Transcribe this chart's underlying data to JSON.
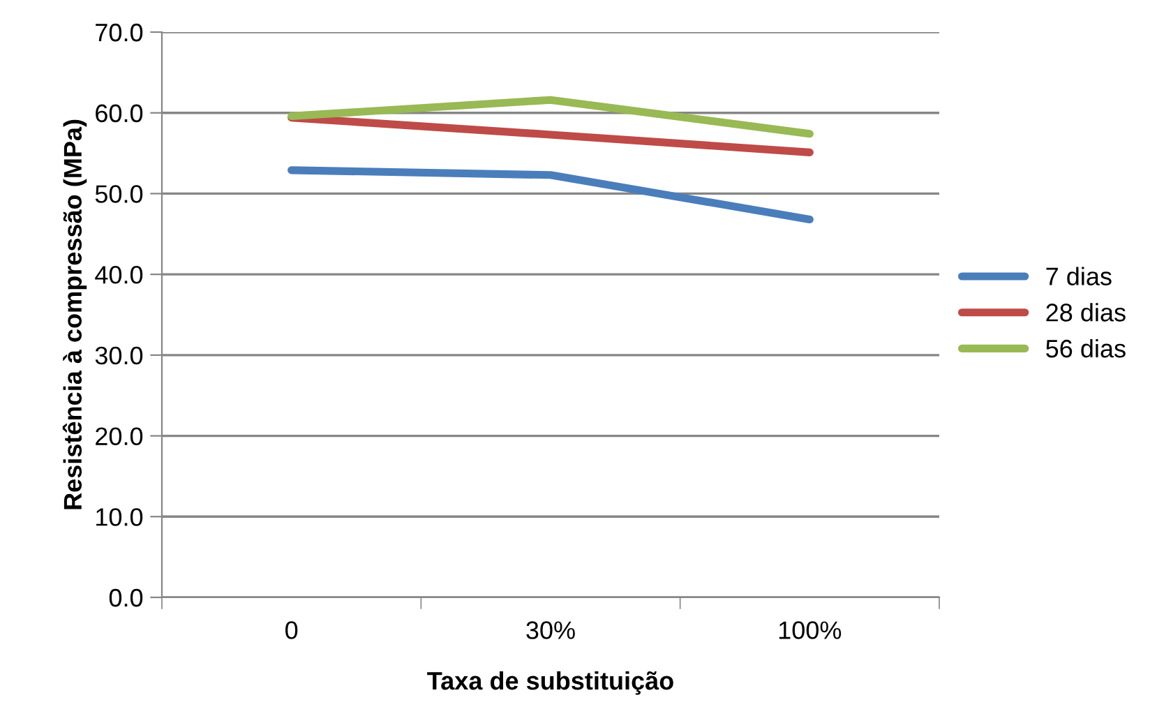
{
  "chart_data": {
    "type": "line",
    "xlabel": "Taxa de substituição",
    "ylabel": "Resistência à compressão (MPa)",
    "categories": [
      "0",
      "30%",
      "100%"
    ],
    "series": [
      {
        "name": "7 dias",
        "color": "#4a7ebb",
        "values": [
          52.9,
          52.3,
          46.8
        ]
      },
      {
        "name": "28 dias",
        "color": "#be4b48",
        "values": [
          59.4,
          57.3,
          55.1
        ]
      },
      {
        "name": "56 dias",
        "color": "#98b954",
        "values": [
          59.6,
          61.6,
          57.4
        ]
      }
    ],
    "ylim": [
      0,
      70
    ],
    "yticks": [
      {
        "value": 0,
        "label": "0.0"
      },
      {
        "value": 10,
        "label": "10.0"
      },
      {
        "value": 20,
        "label": "20.0"
      },
      {
        "value": 30,
        "label": "30.0"
      },
      {
        "value": 40,
        "label": "40.0"
      },
      {
        "value": 50,
        "label": "50.0"
      },
      {
        "value": 60,
        "label": "60.0"
      },
      {
        "value": 70,
        "label": "70.0"
      }
    ],
    "grid": "y",
    "legend": "right",
    "marker": "none",
    "line_style": "solid"
  }
}
